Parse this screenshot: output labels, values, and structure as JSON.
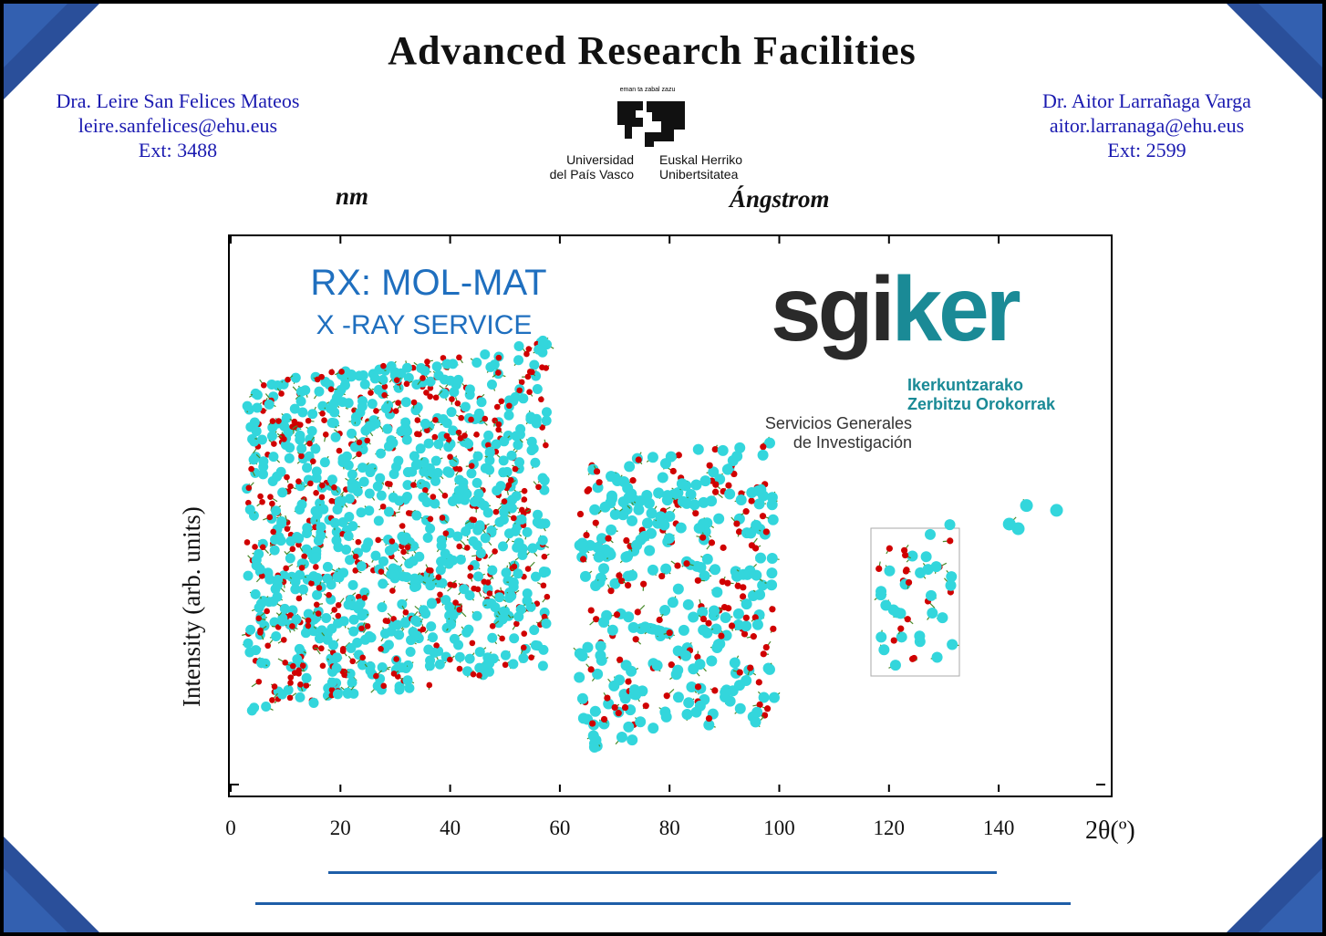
{
  "title": "Advanced Research Facilities",
  "contacts": [
    {
      "name": "Dra. Leire San Felices Mateos",
      "email": "leire.sanfelices@ehu.eus",
      "ext": "Ext: 3488"
    },
    {
      "name": "Dr. Aitor Larrañaga Varga",
      "email": "aitor.larranaga@ehu.eus",
      "ext": "Ext: 2599"
    }
  ],
  "ehu_logo": {
    "motto": "eman ta zabal zazu",
    "es_line1": "Universidad",
    "es_line2": "del País Vasco",
    "eu_line1": "Euskal Herriko",
    "eu_line2": "Unibertsitatea"
  },
  "scales": {
    "nm": "nm",
    "angstrom": "Ángstrom"
  },
  "service": {
    "title": "RX: MOL-MAT",
    "subtitle": "X -RAY SERVICE"
  },
  "sgiker": {
    "sgi": "sgi",
    "ker": "ker",
    "eu_line1": "Ikerkuntzarako",
    "eu_line2": "Zerbitzu Orokorrak",
    "es_line1": "Servicios Generales",
    "es_line2": "de Investigación"
  },
  "axes": {
    "ylabel": "Intensity (arb. units)",
    "xlabel": "2θ(º)",
    "xticks": [
      "0",
      "20",
      "40",
      "60",
      "80",
      "100",
      "120",
      "140"
    ]
  },
  "colors": {
    "accent": "#1e5ea8",
    "contact": "#1a1ab0",
    "atom_o": "#d00000",
    "atom_m": "#33d6dc"
  }
}
